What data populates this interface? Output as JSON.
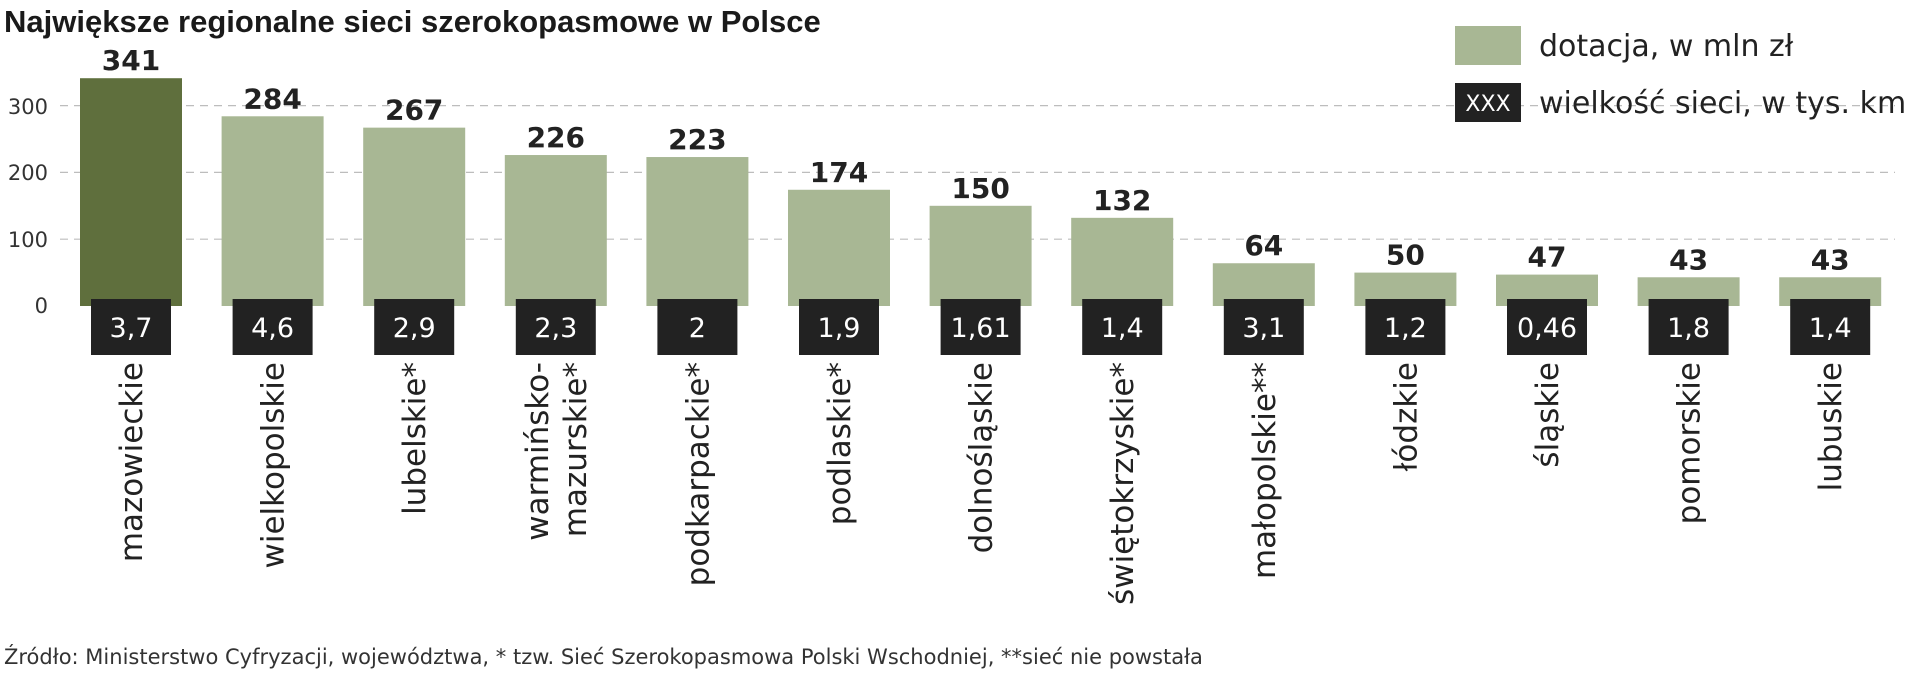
{
  "chart_data": {
    "type": "bar",
    "title": "Największe regionalne sieci szerokopasmowe w Polsce",
    "ylim": [
      0,
      341
    ],
    "yticks": [
      "0",
      "100",
      "200",
      "300"
    ],
    "grid": true,
    "legend_position": "top-right",
    "series": [
      {
        "name": "dotacja, w mln zł",
        "values": [
          341,
          284,
          267,
          226,
          223,
          174,
          150,
          132,
          64,
          50,
          47,
          43,
          43
        ]
      },
      {
        "name": "wielkość sieci, w tys. km",
        "values": [
          3.7,
          4.6,
          2.9,
          2.3,
          2,
          1.9,
          1.61,
          1.4,
          3.1,
          1.2,
          0.46,
          1.8,
          1.4
        ]
      }
    ],
    "value_labels": [
      "341",
      "284",
      "267",
      "226",
      "223",
      "174",
      "150",
      "132",
      "64",
      "50",
      "47",
      "43",
      "43"
    ],
    "network_labels": [
      "3,7",
      "4,6",
      "2,9",
      "2,3",
      "2",
      "1,9",
      "1,61",
      "1,4",
      "3,1",
      "1,2",
      "0,46",
      "1,8",
      "1,4"
    ],
    "categories": [
      [
        "mazowieckie"
      ],
      [
        "wielkopolskie"
      ],
      [
        "lubelskie*"
      ],
      [
        "warmińsko-",
        "mazurskie*"
      ],
      [
        "podkarpackie*"
      ],
      [
        "podlaskie*"
      ],
      [
        "dolnośląskie"
      ],
      [
        "świętokrzyskie*"
      ],
      [
        "małopolskie**"
      ],
      [
        "łódzkie"
      ],
      [
        "śląskie"
      ],
      [
        "pomorskie"
      ],
      [
        "lubuskie"
      ]
    ],
    "highlight_index": 0,
    "legend_swatch_text": "XXX",
    "source": "Źródło: Ministerstwo Cyfryzacji, województwa, * tzw. Sieć Szerokopasmowa Polski Wschodniej, **sieć nie powstała"
  },
  "colors": {
    "bar": "#a8b794",
    "bar_highlight": "#5f6f3d",
    "label_box": "#222222"
  }
}
